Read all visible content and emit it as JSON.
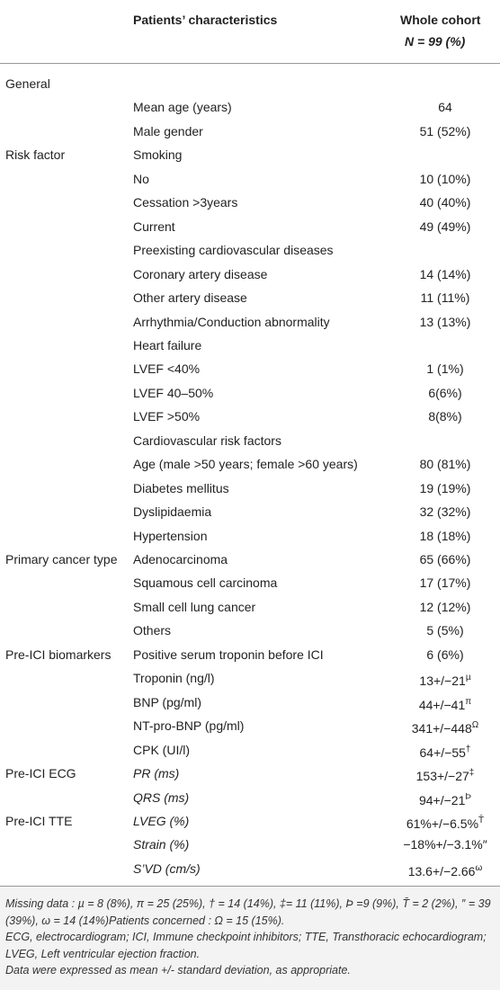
{
  "table": {
    "header": {
      "characteristics": "Patients’ characteristics",
      "cohort": "Whole cohort",
      "n": "N = 99 (%)"
    },
    "rows": [
      {
        "group": "General"
      },
      {
        "label": "Mean age (years)",
        "value": "64"
      },
      {
        "label": "Male gender",
        "value": "51 (52%)"
      },
      {
        "group": "Risk factor",
        "label": "Smoking"
      },
      {
        "label": "No",
        "value": "10 (10%)"
      },
      {
        "label": "Cessation >3years",
        "value": "40 (40%)"
      },
      {
        "label": "Current",
        "value": "49 (49%)"
      },
      {
        "label": "Preexisting cardiovascular diseases"
      },
      {
        "label": "Coronary artery disease",
        "value": "14 (14%)"
      },
      {
        "label": "Other artery disease",
        "value": "11 (11%)"
      },
      {
        "label": "Arrhythmia/Conduction abnormality",
        "value": "13 (13%)"
      },
      {
        "label": "Heart failure"
      },
      {
        "label": "LVEF <40%",
        "value": "1 (1%)"
      },
      {
        "label": "LVEF 40–50%",
        "value": "6(6%)"
      },
      {
        "label": "LVEF >50%",
        "value": "8(8%)"
      },
      {
        "label": "Cardiovascular risk factors"
      },
      {
        "label": "Age (male >50 years; female >60 years)",
        "value": "80 (81%)"
      },
      {
        "label": "Diabetes mellitus",
        "value": "19 (19%)"
      },
      {
        "label": "Dyslipidaemia",
        "value": "32 (32%)"
      },
      {
        "label": "Hypertension",
        "value": "18 (18%)"
      },
      {
        "group": "Primary cancer type",
        "label": "Adenocarcinoma",
        "value": "65 (66%)"
      },
      {
        "label": "Squamous cell carcinoma",
        "value": "17 (17%)"
      },
      {
        "label": "Small cell lung cancer",
        "value": "12 (12%)"
      },
      {
        "label": "Others",
        "value": "5 (5%)"
      },
      {
        "group": "Pre-ICI biomarkers",
        "label": "Positive serum troponin before ICI",
        "value": "6 (6%)"
      },
      {
        "label": "Troponin (ng/l)",
        "value": "13+/−21",
        "sup": "µ"
      },
      {
        "label": "BNP (pg/ml)",
        "value": "44+/−41",
        "sup": "π"
      },
      {
        "label": "NT-pro-BNP (pg/ml)",
        "value": "341+/−448",
        "sup": "Ω"
      },
      {
        "label": "CPK (UI/l)",
        "value": "64+/−55",
        "sup": "†"
      },
      {
        "group": "Pre-ICI ECG",
        "label": "PR (ms)",
        "italic": true,
        "value": "153+/−27",
        "sup": "‡"
      },
      {
        "label": "QRS (ms)",
        "italic": true,
        "value": "94+/−21",
        "sup": "Þ"
      },
      {
        "group": "Pre-ICI TTE",
        "label": "LVEG (%)",
        "italic": true,
        "value": "61%+/−6.5%",
        "sup": "T̄"
      },
      {
        "label": "Strain (%)",
        "italic": true,
        "value": "−18%+/−3.1%″"
      },
      {
        "label": "S’VD (cm/s)",
        "italic": true,
        "value": "13.6+/−2.66",
        "sup": "ω"
      }
    ],
    "footnotes": [
      "Missing data : µ = 8 (8%), π = 25 (25%), † = 14 (14%), ‡= 11 (11%), Þ =9 (9%), T̄ = 2 (2%), ″ = 39 (39%), ω = 14 (14%)Patients concerned : Ω = 15 (15%).",
      "ECG, electrocardiogram; ICI, Immune checkpoint inhibitors; TTE, Transthoracic echocardiogram; LVEG, Left ventricular ejection fraction.",
      "Data were expressed as mean +/- standard deviation, as appropriate."
    ]
  }
}
